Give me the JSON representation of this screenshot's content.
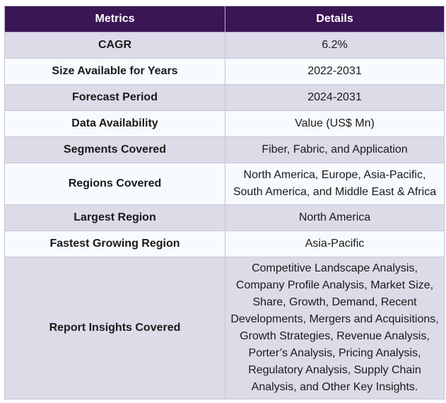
{
  "table": {
    "headers": {
      "metric": "Metrics",
      "detail": "Details"
    },
    "rows": [
      {
        "metric": "CAGR",
        "detail": "6.2%"
      },
      {
        "metric": "Size Available for Years",
        "detail": "2022-2031"
      },
      {
        "metric": "Forecast Period",
        "detail": "2024-2031"
      },
      {
        "metric": "Data Availability",
        "detail": "Value (US$ Mn)"
      },
      {
        "metric": "Segments Covered",
        "detail": "Fiber, Fabric, and Application"
      },
      {
        "metric": "Regions Covered",
        "detail": "North America, Europe, Asia-Pacific, South America, and Middle East & Africa"
      },
      {
        "metric": "Largest Region",
        "detail": "North America"
      },
      {
        "metric": "Fastest Growing Region",
        "detail": "Asia-Pacific"
      },
      {
        "metric": "Report Insights Covered",
        "detail": "Competitive Landscape Analysis, Company Profile Analysis, Market Size, Share, Growth, Demand, Recent Developments, Mergers and Acquisitions, Growth Strategies, Revenue Analysis, Porter’s Analysis, Pricing Analysis, Regulatory Analysis, Supply Chain Analysis, and Other Key Insights."
      }
    ]
  },
  "colors": {
    "header_bg": "#3b1654",
    "header_text": "#ffffff",
    "row_shaded": "#dcdbe8",
    "row_plain": "#f7fbfe",
    "border": "#c8c3d8"
  }
}
